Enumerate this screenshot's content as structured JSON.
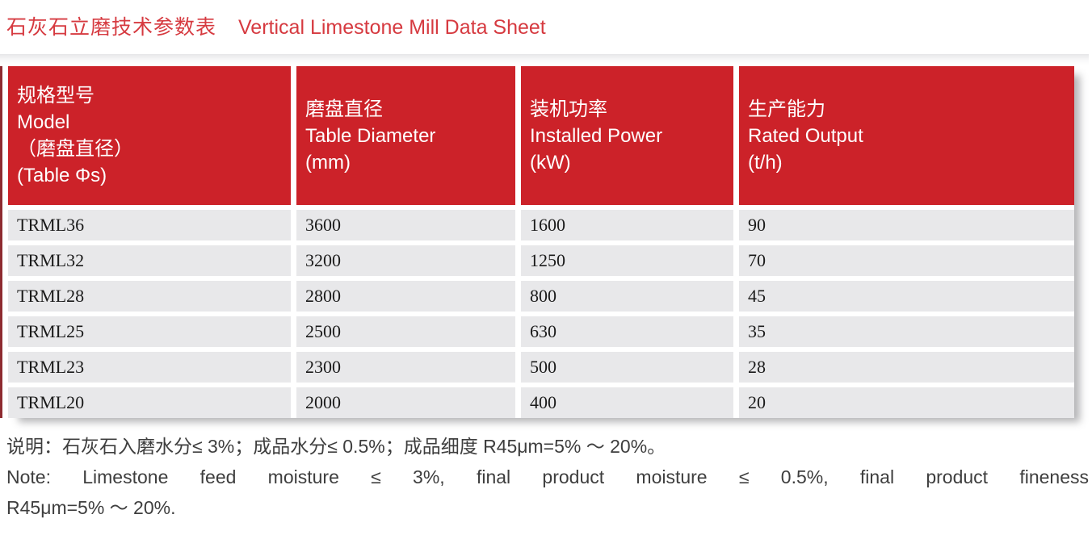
{
  "title": {
    "zh": "石灰石立磨技术参数表",
    "en": "Vertical Limestone Mill Data Sheet"
  },
  "table": {
    "columns": [
      {
        "lines": [
          "规格型号",
          "Model",
          "（磨盘直径）",
          "(Table Φs)"
        ]
      },
      {
        "lines": [
          "磨盘直径",
          "Table Diameter",
          "(mm)"
        ]
      },
      {
        "lines": [
          "装机功率",
          "Installed Power",
          "(kW)"
        ]
      },
      {
        "lines": [
          "生产能力",
          "Rated Output",
          "(t/h)"
        ]
      }
    ],
    "rows": [
      {
        "model": "TRML36",
        "table_diameter_mm": "3600",
        "installed_power_kw": "1600",
        "rated_output_tph": "90"
      },
      {
        "model": "TRML32",
        "table_diameter_mm": "3200",
        "installed_power_kw": "1250",
        "rated_output_tph": "70"
      },
      {
        "model": "TRML28",
        "table_diameter_mm": "2800",
        "installed_power_kw": "800",
        "rated_output_tph": "45"
      },
      {
        "model": "TRML25",
        "table_diameter_mm": "2500",
        "installed_power_kw": "630",
        "rated_output_tph": "35"
      },
      {
        "model": "TRML23",
        "table_diameter_mm": "2300",
        "installed_power_kw": "500",
        "rated_output_tph": "28"
      },
      {
        "model": "TRML20",
        "table_diameter_mm": "2000",
        "installed_power_kw": "400",
        "rated_output_tph": "20"
      }
    ]
  },
  "notes": {
    "zh": "说明：石灰石入磨水分≤ 3%；成品水分≤ 0.5%；成品细度 R45μm=5% ～ 20%。",
    "en_line1": "Note: Limestone feed moisture ≤ 3%, final product moisture ≤ 0.5%, final product fineness",
    "en_line2": "R45μm=5% ～ 20%."
  },
  "colors": {
    "header_red": "#cc2229",
    "title_red": "#d63a40",
    "row_gray": "#e8e8ea",
    "left_edge_red": "#8e2b30",
    "note_text": "#3e3e3e"
  }
}
